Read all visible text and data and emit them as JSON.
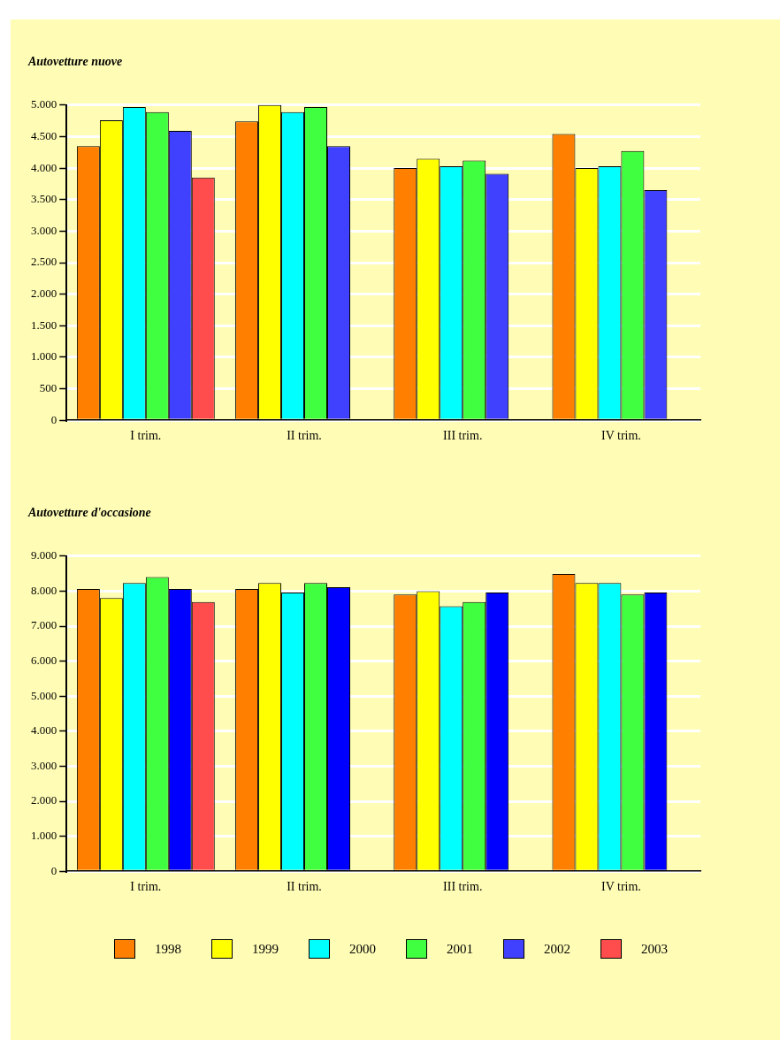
{
  "chart_data": [
    {
      "type": "bar",
      "title": "Autovetture nuove",
      "categories": [
        "I trim.",
        "II trim.",
        "III trim.",
        "IV trim."
      ],
      "series": [
        {
          "name": "1998",
          "color": "#ff8000",
          "values": [
            4350,
            4740,
            4000,
            4540
          ]
        },
        {
          "name": "1999",
          "color": "#ffff00",
          "values": [
            4760,
            5000,
            4150,
            4000
          ]
        },
        {
          "name": "2000",
          "color": "#00ffff",
          "values": [
            4970,
            4890,
            4030,
            4030
          ]
        },
        {
          "name": "2001",
          "color": "#40ff40",
          "values": [
            4890,
            4970,
            4120,
            4270
          ]
        },
        {
          "name": "2002",
          "color": "#4040ff",
          "values": [
            4590,
            4350,
            3910,
            3650
          ]
        },
        {
          "name": "2003",
          "color": "#ff4d4d",
          "values": [
            3850,
            null,
            null,
            null
          ]
        }
      ],
      "ylim": [
        0,
        5000
      ],
      "yticks": [
        {
          "value": 0,
          "label": "0"
        },
        {
          "value": 500,
          "label": "500"
        },
        {
          "value": 1000,
          "label": "1.000"
        },
        {
          "value": 1500,
          "label": "1.500"
        },
        {
          "value": 2000,
          "label": "2.000"
        },
        {
          "value": 2500,
          "label": "2.500"
        },
        {
          "value": 3000,
          "label": "3.000"
        },
        {
          "value": 3500,
          "label": "3.500"
        },
        {
          "value": 4000,
          "label": "4.000"
        },
        {
          "value": 4500,
          "label": "4.500"
        },
        {
          "value": 5000,
          "label": "5.000"
        }
      ],
      "grid": "y",
      "legend": "bottom"
    },
    {
      "type": "bar",
      "title": "Autovetture d'occasione",
      "categories": [
        "I trim.",
        "II trim.",
        "III trim.",
        "IV trim."
      ],
      "series": [
        {
          "color": "#ff8000",
          "values": [
            8060,
            8060,
            7900,
            8490
          ]
        },
        {
          "color": "#ffff00",
          "values": [
            7800,
            8230,
            8000,
            8230
          ]
        },
        {
          "color": "#00ffff",
          "values": [
            8230,
            7960,
            7570,
            8230
          ]
        },
        {
          "color": "#40ff40",
          "values": [
            8400,
            8230,
            7690,
            7900
          ]
        },
        {
          "color": "#0000ff",
          "values": [
            8060,
            8110,
            7960,
            7960
          ]
        },
        {
          "color": "#ff4d4d",
          "values": [
            7690,
            null,
            null,
            null
          ]
        }
      ],
      "ylim": [
        0,
        9000
      ],
      "yticks": [
        {
          "value": 0,
          "label": "0"
        },
        {
          "value": 1000,
          "label": "1.000"
        },
        {
          "value": 2000,
          "label": "2.000"
        },
        {
          "value": 3000,
          "label": "3.000"
        },
        {
          "value": 4000,
          "label": "4.000"
        },
        {
          "value": 5000,
          "label": "5.000"
        },
        {
          "value": 6000,
          "label": "6.000"
        },
        {
          "value": 7000,
          "label": "7.000"
        },
        {
          "value": 8000,
          "label": "8.000"
        },
        {
          "value": 9000,
          "label": "9.000"
        }
      ],
      "grid": "y"
    }
  ]
}
